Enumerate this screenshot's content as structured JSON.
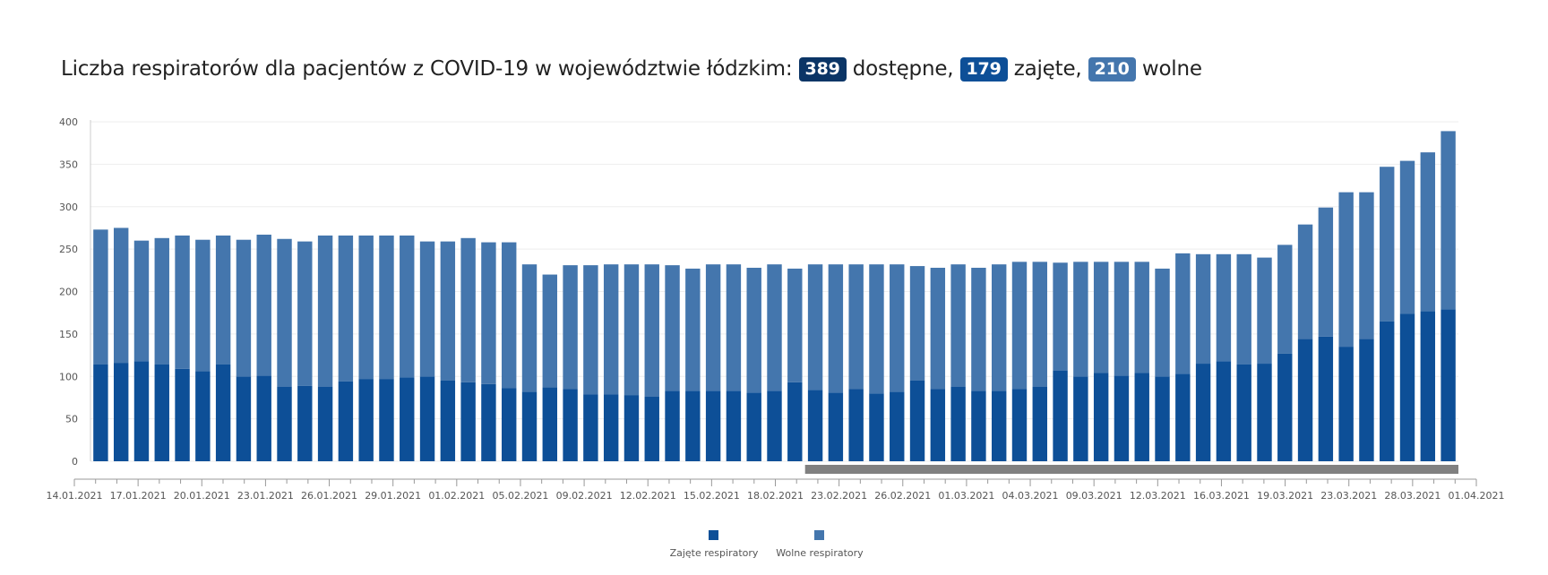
{
  "title": {
    "prefix": "Liczba respiratorów dla pacjentów z COVID-19 w województwie łódzkim:",
    "available_value": "389",
    "available_label": "dostępne,",
    "occupied_value": "179",
    "occupied_label": "zajęte,",
    "free_value": "210",
    "free_label": "wolne"
  },
  "colors": {
    "occupied": "#0d4f97",
    "free": "#4476ad",
    "available_badge": "#0b3566",
    "occupied_badge": "#0d4f97",
    "free_badge": "#4476ad",
    "scrollbar": "#808080"
  },
  "chart_data": {
    "type": "bar",
    "stacked": true,
    "ylim": [
      0,
      400
    ],
    "yticks": [
      0,
      50,
      100,
      150,
      200,
      250,
      300,
      350,
      400
    ],
    "xtick_labels": [
      "14.01.2021",
      "17.01.2021",
      "20.01.2021",
      "23.01.2021",
      "26.01.2021",
      "29.01.2021",
      "01.02.2021",
      "05.02.2021",
      "09.02.2021",
      "12.02.2021",
      "15.02.2021",
      "18.02.2021",
      "23.02.2021",
      "26.02.2021",
      "01.03.2021",
      "04.03.2021",
      "09.03.2021",
      "12.03.2021",
      "16.03.2021",
      "19.03.2021",
      "23.03.2021",
      "28.03.2021",
      "01.04.2021"
    ],
    "grid": true,
    "legend_position": "bottom",
    "series": [
      {
        "name": "Zajęte respiratory",
        "values": [
          114,
          116,
          118,
          114,
          109,
          106,
          114,
          100,
          101,
          88,
          89,
          88,
          94,
          97,
          97,
          99,
          100,
          95,
          93,
          91,
          86,
          82,
          87,
          85,
          79,
          79,
          78,
          76,
          83,
          83,
          83,
          83,
          81,
          83,
          93,
          84,
          81,
          85,
          80,
          82,
          95,
          85,
          88,
          83,
          83,
          85,
          88,
          107,
          100,
          104,
          101,
          104,
          100,
          103,
          115,
          118,
          114,
          115,
          127,
          144,
          147,
          135,
          144,
          165,
          174,
          177,
          179
        ]
      },
      {
        "name": "Wolne respiratory",
        "values": [
          159,
          159,
          142,
          149,
          157,
          155,
          152,
          161,
          166,
          174,
          170,
          178,
          172,
          169,
          169,
          167,
          159,
          164,
          170,
          167,
          172,
          150,
          133,
          146,
          152,
          153,
          154,
          156,
          148,
          144,
          149,
          149,
          147,
          149,
          134,
          148,
          151,
          147,
          152,
          150,
          135,
          143,
          144,
          145,
          149,
          150,
          147,
          127,
          135,
          131,
          134,
          131,
          127,
          142,
          129,
          126,
          130,
          125,
          128,
          135,
          152,
          182,
          173,
          182,
          180,
          187,
          210
        ]
      }
    ],
    "legend": [
      "Zajęte respiratory",
      "Wolne respiratory"
    ]
  }
}
